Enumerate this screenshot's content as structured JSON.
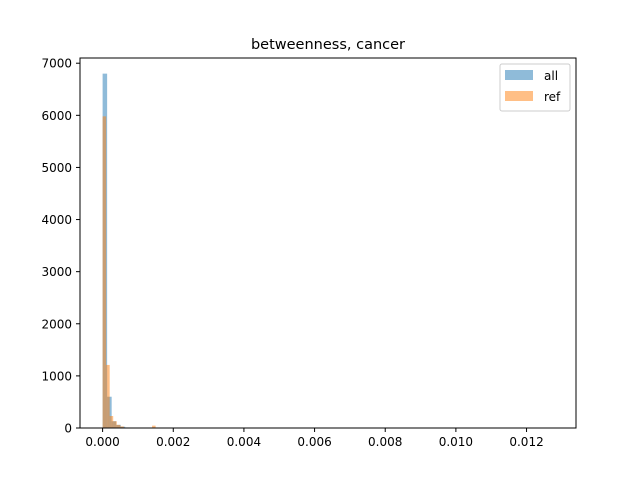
{
  "chart_data": {
    "type": "histogram",
    "title": "betweenness, cancer",
    "xlabel": "",
    "ylabel": "",
    "xlim": [
      -0.00064,
      0.0134
    ],
    "ylim": [
      0,
      7100
    ],
    "x_ticks": [
      "0.000",
      "0.002",
      "0.004",
      "0.006",
      "0.008",
      "0.010",
      "0.012"
    ],
    "x_tick_values": [
      0,
      0.002,
      0.004,
      0.006,
      0.008,
      0.01,
      0.012
    ],
    "y_ticks": [
      "0",
      "1000",
      "2000",
      "3000",
      "4000",
      "5000",
      "6000",
      "7000"
    ],
    "y_tick_values": [
      0,
      1000,
      2000,
      3000,
      4000,
      5000,
      6000,
      7000
    ],
    "legend_position": "upper right",
    "series": [
      {
        "name": "all",
        "color": "#1f77b4",
        "alpha": 0.5,
        "bin_width": 0.000128,
        "bins": [
          {
            "x": 0.0,
            "count": 6800
          },
          {
            "x": 0.000128,
            "count": 600
          },
          {
            "x": 0.000256,
            "count": 130
          },
          {
            "x": 0.000384,
            "count": 60
          },
          {
            "x": 0.000512,
            "count": 25
          },
          {
            "x": 0.00064,
            "count": 10
          },
          {
            "x": 0.000768,
            "count": 5
          }
        ]
      },
      {
        "name": "ref",
        "color": "#ff7f0e",
        "alpha": 0.5,
        "bin_width": 0.0001,
        "bins": [
          {
            "x": 0.0,
            "count": 5980
          },
          {
            "x": 0.0001,
            "count": 1210
          },
          {
            "x": 0.0002,
            "count": 230
          },
          {
            "x": 0.0003,
            "count": 130
          },
          {
            "x": 0.0004,
            "count": 60
          },
          {
            "x": 0.0005,
            "count": 30
          },
          {
            "x": 0.0006,
            "count": 10
          },
          {
            "x": 0.0014,
            "count": 45
          }
        ]
      }
    ]
  }
}
